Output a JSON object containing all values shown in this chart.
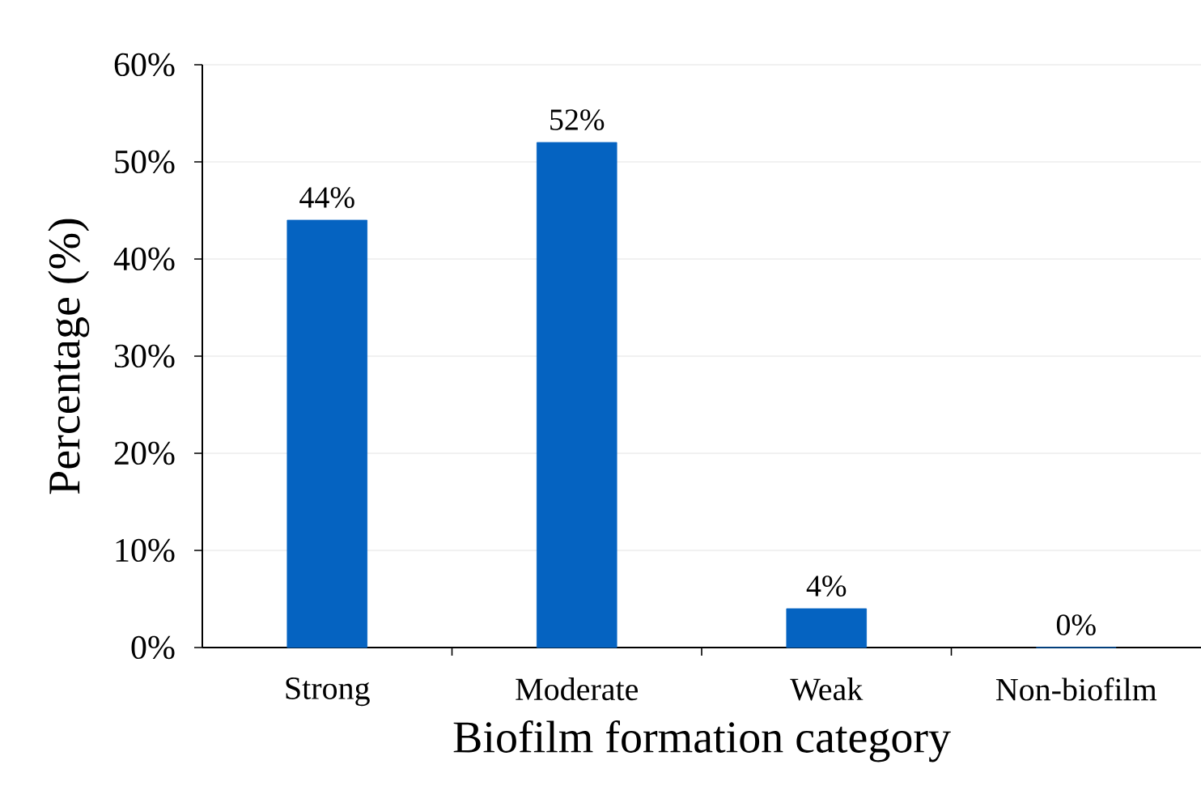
{
  "chart_data": {
    "type": "bar",
    "xlabel": "Biofilm formation category",
    "ylabel": "Percentage (%)",
    "categories": [
      "Strong",
      "Moderate",
      "Weak",
      "Non-biofilm"
    ],
    "values": [
      44,
      52,
      4,
      0
    ],
    "value_labels": [
      "44%",
      "52%",
      "4%",
      "0%"
    ],
    "color": "#0563c1",
    "ylim": [
      0,
      60
    ],
    "yticks": [
      {
        "value": 0,
        "label": "0%"
      },
      {
        "value": 10,
        "label": "10%"
      },
      {
        "value": 20,
        "label": "20%"
      },
      {
        "value": 30,
        "label": "30%"
      },
      {
        "value": 40,
        "label": "40%"
      },
      {
        "value": 50,
        "label": "50%"
      },
      {
        "value": 60,
        "label": "60%"
      }
    ],
    "grid": "y"
  }
}
